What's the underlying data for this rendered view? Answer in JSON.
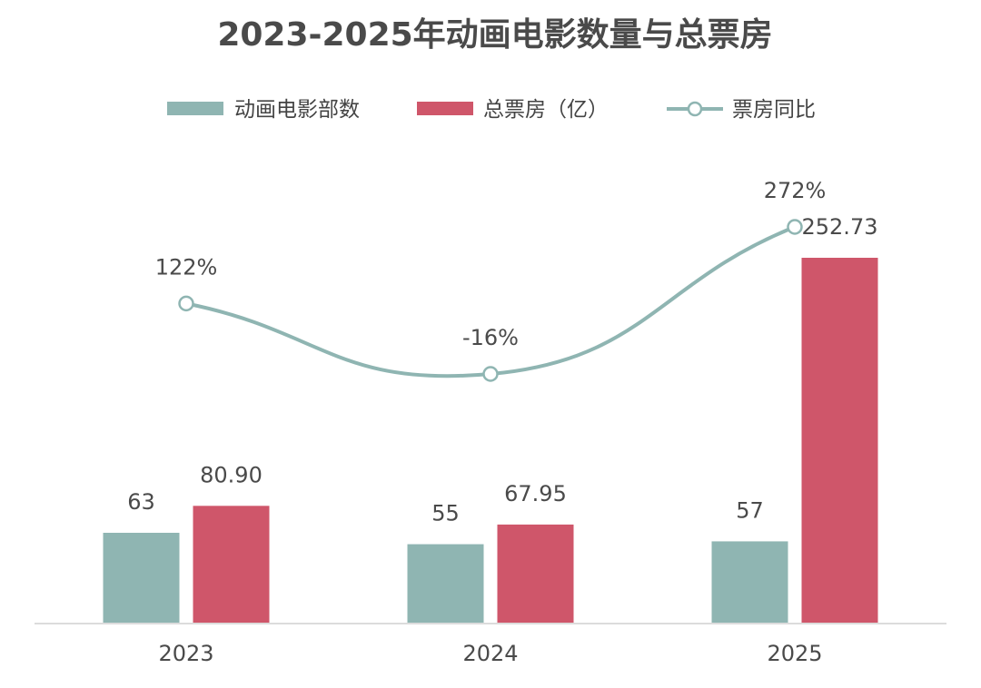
{
  "chart_data": {
    "type": "bar",
    "title": "2023-2025年动画电影数量与总票房",
    "categories": [
      "2023",
      "2024",
      "2025"
    ],
    "series": [
      {
        "name": "动画电影部数",
        "kind": "bar",
        "color": "#8fb5b2",
        "values": [
          63,
          55,
          57
        ],
        "labels": [
          "63",
          "55",
          "57"
        ]
      },
      {
        "name": "总票房（亿）",
        "kind": "bar",
        "color": "#cf566a",
        "values": [
          80.9,
          67.95,
          252.73
        ],
        "labels": [
          "80.90",
          "67.95",
          "252.73"
        ]
      },
      {
        "name": "票房同比",
        "kind": "line",
        "color": "#8fb5b2",
        "unit": "%",
        "values": [
          122,
          -16,
          272
        ],
        "labels": [
          "122%",
          "-16%",
          "272%"
        ]
      }
    ],
    "legend_position": "top-center",
    "grid": false
  }
}
